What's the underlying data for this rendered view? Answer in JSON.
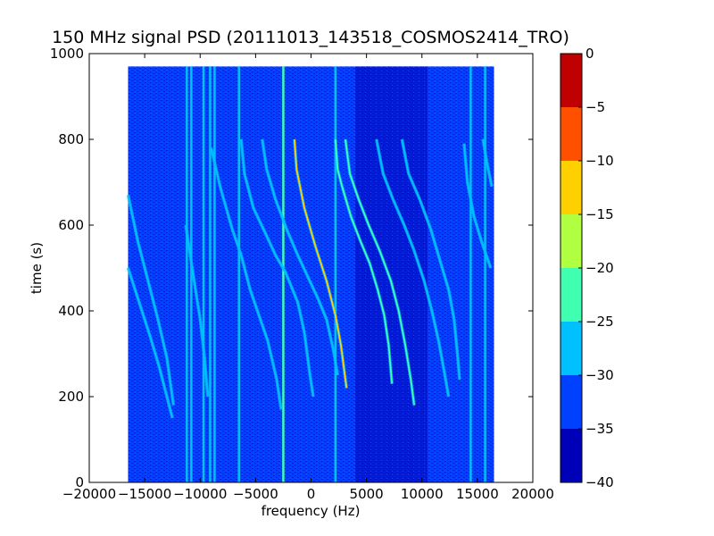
{
  "chart_data": {
    "type": "heatmap",
    "title": "150 MHz signal PSD (20111013_143518_COSMOS2414_TRO)",
    "xlabel": "frequency (Hz)",
    "ylabel": "time (s)",
    "xlim": [
      -20000,
      20000
    ],
    "ylim": [
      0,
      1000
    ],
    "xticks": [
      -20000,
      -15000,
      -10000,
      -5000,
      0,
      5000,
      10000,
      15000,
      20000
    ],
    "xtick_labels": [
      "−20000",
      "−15000",
      "−10000",
      "−5000",
      "0",
      "5000",
      "10000",
      "15000",
      "20000"
    ],
    "yticks": [
      0,
      200,
      400,
      600,
      800,
      1000
    ],
    "ytick_labels": [
      "0",
      "200",
      "400",
      "600",
      "800",
      "1000"
    ],
    "data_extent": {
      "x": [
        -16500,
        16500
      ],
      "y": [
        0,
        970
      ]
    },
    "background_level": -35,
    "colorbar": {
      "levels": [
        -40,
        -35,
        -30,
        -25,
        -20,
        -15,
        -10,
        -5,
        0
      ],
      "tick_labels": [
        "−40",
        "−35",
        "−30",
        "−25",
        "−20",
        "−15",
        "−10",
        "−5",
        "0"
      ],
      "colors": [
        "#0000b8",
        "#0040ff",
        "#00c0ff",
        "#40ffb0",
        "#b0ff40",
        "#ffd000",
        "#ff5000",
        "#c00000"
      ]
    },
    "vertical_lines": [
      {
        "x": -11200,
        "level": -27
      },
      {
        "x": -10800,
        "level": -27
      },
      {
        "x": -9700,
        "level": -29
      },
      {
        "x": -9100,
        "level": -30
      },
      {
        "x": -8700,
        "level": -28
      },
      {
        "x": -6500,
        "level": -27
      },
      {
        "x": -2500,
        "level": -25
      },
      {
        "x": 2200,
        "level": -30
      },
      {
        "x": 14400,
        "level": -29
      },
      {
        "x": 15700,
        "level": -27
      }
    ],
    "traces": [
      {
        "level": -28,
        "points": [
          [
            -16500,
            670
          ],
          [
            -15600,
            560
          ],
          [
            -14700,
            470
          ],
          [
            -13800,
            380
          ],
          [
            -13000,
            290
          ],
          [
            -12400,
            180
          ]
        ]
      },
      {
        "level": -29,
        "points": [
          [
            -16500,
            500
          ],
          [
            -15500,
            420
          ],
          [
            -14500,
            340
          ],
          [
            -13700,
            270
          ],
          [
            -13000,
            200
          ],
          [
            -12500,
            150
          ]
        ]
      },
      {
        "level": -29,
        "points": [
          [
            -11300,
            600
          ],
          [
            -10600,
            480
          ],
          [
            -10000,
            380
          ],
          [
            -9600,
            290
          ],
          [
            -9300,
            200
          ]
        ]
      },
      {
        "level": -28,
        "points": [
          [
            -9000,
            780
          ],
          [
            -8200,
            690
          ],
          [
            -7100,
            590
          ],
          [
            -6300,
            530
          ],
          [
            -5500,
            450
          ],
          [
            -4700,
            390
          ],
          [
            -3900,
            330
          ],
          [
            -3100,
            240
          ],
          [
            -2700,
            170
          ]
        ]
      },
      {
        "level": -27,
        "points": [
          [
            -6300,
            800
          ],
          [
            -6000,
            720
          ],
          [
            -5200,
            640
          ],
          [
            -4100,
            580
          ],
          [
            -3200,
            530
          ],
          [
            -2300,
            490
          ],
          [
            -1200,
            420
          ],
          [
            -600,
            350
          ],
          [
            -100,
            250
          ],
          [
            200,
            200
          ]
        ]
      },
      {
        "level": -26,
        "points": [
          [
            -4400,
            800
          ],
          [
            -4000,
            730
          ],
          [
            -3200,
            660
          ],
          [
            -2200,
            590
          ],
          [
            -1200,
            530
          ],
          [
            -300,
            480
          ],
          [
            600,
            430
          ],
          [
            1400,
            380
          ],
          [
            2000,
            310
          ],
          [
            2400,
            250
          ]
        ]
      },
      {
        "level": -12,
        "points": [
          [
            -1500,
            800
          ],
          [
            -1300,
            730
          ],
          [
            -600,
            640
          ],
          [
            400,
            550
          ],
          [
            1400,
            470
          ],
          [
            2200,
            390
          ],
          [
            2700,
            320
          ],
          [
            3000,
            260
          ],
          [
            3200,
            220
          ]
        ]
      },
      {
        "level": -22,
        "points": [
          [
            2200,
            800
          ],
          [
            2400,
            730
          ],
          [
            2800,
            690
          ],
          [
            3600,
            620
          ],
          [
            4500,
            560
          ],
          [
            5300,
            510
          ],
          [
            6000,
            450
          ],
          [
            6600,
            390
          ],
          [
            7000,
            320
          ],
          [
            7300,
            230
          ]
        ]
      },
      {
        "level": -21,
        "points": [
          [
            3100,
            800
          ],
          [
            3500,
            720
          ],
          [
            4300,
            660
          ],
          [
            5200,
            600
          ],
          [
            6200,
            540
          ],
          [
            7200,
            470
          ],
          [
            7900,
            400
          ],
          [
            8500,
            320
          ],
          [
            9000,
            240
          ],
          [
            9300,
            180
          ]
        ]
      },
      {
        "level": -29,
        "points": [
          [
            5900,
            800
          ],
          [
            6500,
            720
          ],
          [
            7400,
            660
          ],
          [
            8400,
            600
          ],
          [
            9300,
            540
          ],
          [
            10200,
            470
          ],
          [
            10900,
            400
          ],
          [
            11500,
            330
          ],
          [
            12000,
            260
          ],
          [
            12400,
            200
          ]
        ]
      },
      {
        "level": -30,
        "points": [
          [
            8200,
            800
          ],
          [
            8800,
            720
          ],
          [
            9800,
            660
          ],
          [
            10800,
            590
          ],
          [
            11600,
            520
          ],
          [
            12400,
            450
          ],
          [
            12900,
            380
          ],
          [
            13200,
            300
          ],
          [
            13400,
            240
          ]
        ]
      },
      {
        "level": -28,
        "points": [
          [
            13800,
            790
          ],
          [
            14100,
            700
          ],
          [
            14700,
            620
          ],
          [
            15400,
            560
          ],
          [
            16200,
            500
          ]
        ]
      },
      {
        "level": -28,
        "points": [
          [
            15500,
            800
          ],
          [
            15900,
            740
          ],
          [
            16300,
            690
          ]
        ]
      }
    ]
  }
}
